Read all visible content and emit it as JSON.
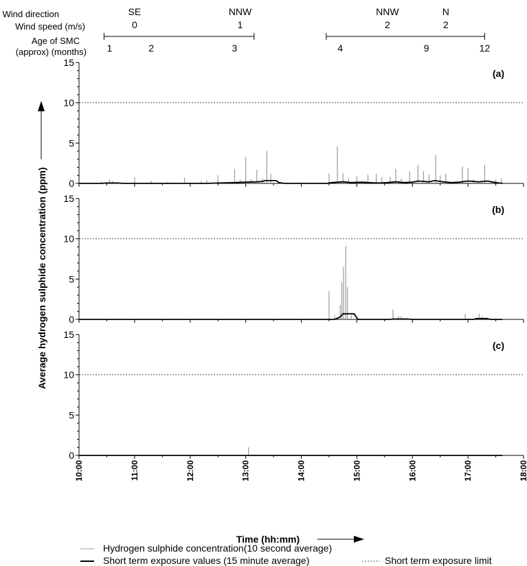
{
  "header": {
    "wind_direction_label": "Wind direction",
    "wind_speed_label": "Wind speed (m/s)",
    "age_label_line1": "Age of SMC",
    "age_label_line2": "(approx) (months)",
    "groups": [
      {
        "direction": "SE",
        "speed": "0",
        "x": 11.0
      },
      {
        "direction": "NNW",
        "speed": "1",
        "x": 12.9
      },
      {
        "direction": "NNW",
        "speed": "2",
        "x": 15.55
      },
      {
        "direction": "N",
        "speed": "2",
        "x": 16.6
      }
    ],
    "brackets": [
      [
        10.45,
        13.15
      ],
      [
        14.45,
        17.3
      ]
    ],
    "ages": [
      {
        "label": "1",
        "x": 10.55
      },
      {
        "label": "2",
        "x": 11.3
      },
      {
        "label": "3",
        "x": 12.8
      },
      {
        "label": "4",
        "x": 14.7
      },
      {
        "label": "9",
        "x": 16.25
      },
      {
        "label": "12",
        "x": 17.3
      }
    ]
  },
  "chart_data": {
    "type": "line",
    "xlabel": "Time (hh:mm)",
    "ylabel": "Average hydrogen sulphide concentration (ppm)",
    "xlim": [
      10,
      18
    ],
    "ylim": [
      0,
      15
    ],
    "x_ticks": [
      "10:00",
      "11:00",
      "12:00",
      "13:00",
      "14:00",
      "15:00",
      "16:00",
      "17:00",
      "18:00"
    ],
    "y_ticks": [
      "0",
      "5",
      "10",
      "15"
    ],
    "exposure_limit": 10,
    "legend": {
      "h2s": "Hydrogen sulphide concentration(10 second average)",
      "stev": "Short term exposure values (15 minute average)",
      "limit": "Short term exposure limit"
    },
    "colors": {
      "h2s": "#999999",
      "stev": "#000000",
      "limit": "#555555"
    },
    "panels": [
      {
        "label": "(a)",
        "spikes": [
          [
            10.4,
            0.2
          ],
          [
            10.55,
            0.5
          ],
          [
            10.6,
            0.3
          ],
          [
            11.0,
            0.8
          ],
          [
            11.3,
            0.3
          ],
          [
            11.6,
            0.2
          ],
          [
            11.9,
            0.7
          ],
          [
            12.2,
            0.3
          ],
          [
            12.3,
            0.4
          ],
          [
            12.5,
            1.0
          ],
          [
            12.8,
            1.8
          ],
          [
            12.9,
            0.5
          ],
          [
            13.0,
            3.3
          ],
          [
            13.1,
            0.5
          ],
          [
            13.2,
            1.7
          ],
          [
            13.3,
            0.6
          ],
          [
            13.38,
            4.0
          ],
          [
            13.45,
            1.2
          ],
          [
            14.5,
            1.2
          ],
          [
            14.65,
            4.6
          ],
          [
            14.75,
            1.3
          ],
          [
            14.85,
            0.6
          ],
          [
            15.0,
            0.9
          ],
          [
            15.2,
            1.1
          ],
          [
            15.35,
            1.2
          ],
          [
            15.45,
            0.8
          ],
          [
            15.6,
            0.8
          ],
          [
            15.7,
            1.8
          ],
          [
            15.8,
            0.6
          ],
          [
            15.95,
            1.5
          ],
          [
            16.1,
            2.3
          ],
          [
            16.2,
            1.5
          ],
          [
            16.3,
            1.1
          ],
          [
            16.42,
            3.5
          ],
          [
            16.5,
            1.0
          ],
          [
            16.6,
            1.2
          ],
          [
            16.9,
            2.1
          ],
          [
            17.0,
            1.9
          ],
          [
            17.1,
            0.5
          ],
          [
            17.3,
            2.3
          ],
          [
            17.5,
            0.5
          ],
          [
            17.6,
            0.6
          ]
        ],
        "stev": [
          [
            10,
            0
          ],
          [
            10.4,
            0
          ],
          [
            10.5,
            0.05
          ],
          [
            10.7,
            0.05
          ],
          [
            10.8,
            0
          ],
          [
            12.3,
            0
          ],
          [
            12.5,
            0.05
          ],
          [
            12.8,
            0.1
          ],
          [
            13.0,
            0.15
          ],
          [
            13.2,
            0.2
          ],
          [
            13.3,
            0.25
          ],
          [
            13.35,
            0.35
          ],
          [
            13.55,
            0.35
          ],
          [
            13.6,
            0.1
          ],
          [
            13.7,
            0
          ],
          [
            14.45,
            0
          ],
          [
            14.55,
            0.1
          ],
          [
            14.75,
            0.2
          ],
          [
            14.9,
            0.1
          ],
          [
            15.1,
            0.15
          ],
          [
            15.2,
            0.1
          ],
          [
            15.4,
            0.05
          ],
          [
            15.55,
            0.1
          ],
          [
            15.7,
            0.2
          ],
          [
            15.85,
            0.1
          ],
          [
            16.0,
            0.15
          ],
          [
            16.1,
            0.3
          ],
          [
            16.3,
            0.2
          ],
          [
            16.4,
            0.35
          ],
          [
            16.55,
            0.2
          ],
          [
            16.7,
            0.1
          ],
          [
            16.85,
            0.15
          ],
          [
            17.0,
            0.3
          ],
          [
            17.2,
            0.2
          ],
          [
            17.35,
            0.3
          ],
          [
            17.5,
            0.1
          ],
          [
            17.62,
            0
          ]
        ]
      },
      {
        "label": "(b)",
        "spikes": [
          [
            14.5,
            3.5
          ],
          [
            14.6,
            0.5
          ],
          [
            14.7,
            1.8
          ],
          [
            14.73,
            4.6
          ],
          [
            14.76,
            6.5
          ],
          [
            14.8,
            9.1
          ],
          [
            14.83,
            4.0
          ],
          [
            14.9,
            0.5
          ],
          [
            15.65,
            1.2
          ],
          [
            15.75,
            0.4
          ],
          [
            15.8,
            0.4
          ],
          [
            16.95,
            0.7
          ],
          [
            17.2,
            0.7
          ],
          [
            17.25,
            0.4
          ]
        ],
        "stev": [
          [
            10,
            0
          ],
          [
            14.6,
            0
          ],
          [
            14.7,
            0.3
          ],
          [
            14.75,
            0.7
          ],
          [
            14.95,
            0.7
          ],
          [
            15.02,
            0
          ],
          [
            15.6,
            0
          ],
          [
            15.65,
            0.05
          ],
          [
            15.9,
            0.05
          ],
          [
            16.0,
            0
          ],
          [
            17.1,
            0
          ],
          [
            17.15,
            0.1
          ],
          [
            17.35,
            0.1
          ],
          [
            17.4,
            0
          ],
          [
            17.62,
            0
          ]
        ]
      },
      {
        "label": "(c)",
        "spikes": [
          [
            13.05,
            1.0
          ]
        ],
        "stev": [
          [
            10,
            0
          ],
          [
            17.62,
            0
          ]
        ]
      }
    ]
  }
}
